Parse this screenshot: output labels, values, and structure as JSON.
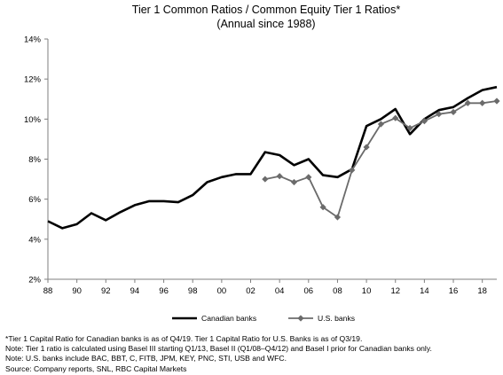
{
  "chart_data": {
    "type": "line",
    "title": "Tier 1 Common Ratios / Common Equity Tier 1 Ratios*",
    "subtitle": "(Annual since 1988)",
    "xlabel": "",
    "ylabel": "",
    "x_range": [
      1988,
      2019
    ],
    "ylim": [
      2,
      14
    ],
    "y_ticks": [
      2,
      4,
      6,
      8,
      10,
      12,
      14
    ],
    "y_tick_labels": [
      "2%",
      "4%",
      "6%",
      "8%",
      "10%",
      "12%",
      "14%"
    ],
    "x_ticks": [
      1988,
      1990,
      1992,
      1994,
      1996,
      1998,
      2000,
      2002,
      2004,
      2006,
      2008,
      2010,
      2012,
      2014,
      2016,
      2018
    ],
    "x_tick_labels": [
      "88",
      "90",
      "92",
      "94",
      "96",
      "98",
      "00",
      "02",
      "04",
      "06",
      "08",
      "10",
      "12",
      "14",
      "16",
      "18"
    ],
    "grid": false,
    "legend_position": "bottom",
    "series": [
      {
        "name": "Canadian banks",
        "color": "#000000",
        "marker": "none",
        "x": [
          1988,
          1989,
          1990,
          1991,
          1992,
          1993,
          1994,
          1995,
          1996,
          1997,
          1998,
          1999,
          2000,
          2001,
          2002,
          2003,
          2004,
          2005,
          2006,
          2007,
          2008,
          2009,
          2010,
          2011,
          2012,
          2013,
          2014,
          2015,
          2016,
          2017,
          2018,
          2019
        ],
        "values": [
          4.9,
          4.55,
          4.75,
          5.3,
          4.95,
          5.35,
          5.7,
          5.9,
          5.9,
          5.85,
          6.2,
          6.85,
          7.1,
          7.25,
          7.25,
          8.35,
          8.2,
          7.7,
          8.0,
          7.2,
          7.1,
          7.5,
          9.65,
          10.0,
          10.5,
          9.25,
          10.0,
          10.45,
          10.6,
          11.05,
          11.45,
          11.6
        ]
      },
      {
        "name": "U.S. banks",
        "color": "#6b6b6b",
        "marker": "diamond",
        "x": [
          2003,
          2004,
          2005,
          2006,
          2007,
          2008,
          2009,
          2010,
          2011,
          2012,
          2013,
          2014,
          2015,
          2016,
          2017,
          2018,
          2019
        ],
        "values": [
          7.0,
          7.15,
          6.85,
          7.1,
          5.6,
          5.1,
          7.45,
          8.6,
          9.75,
          10.05,
          9.55,
          9.9,
          10.25,
          10.35,
          10.8,
          10.8,
          10.9
        ]
      }
    ]
  },
  "notes": [
    "*Tier 1 Capital Ratio for Canadian banks is as of Q4/19. Tier 1 Capital Ratio for U.S. Banks is as of Q3/19.",
    "Note: Tier 1 ratio is calculated using Basel III starting Q1/13, Basel II (Q1/08–Q4/12) and Basel I prior for Canadian banks only.",
    "Note: U.S. banks include BAC, BBT, C, FITB, JPM, KEY, PNC, STI, USB and WFC.",
    "Source: Company reports, SNL, RBC Capital Markets"
  ]
}
